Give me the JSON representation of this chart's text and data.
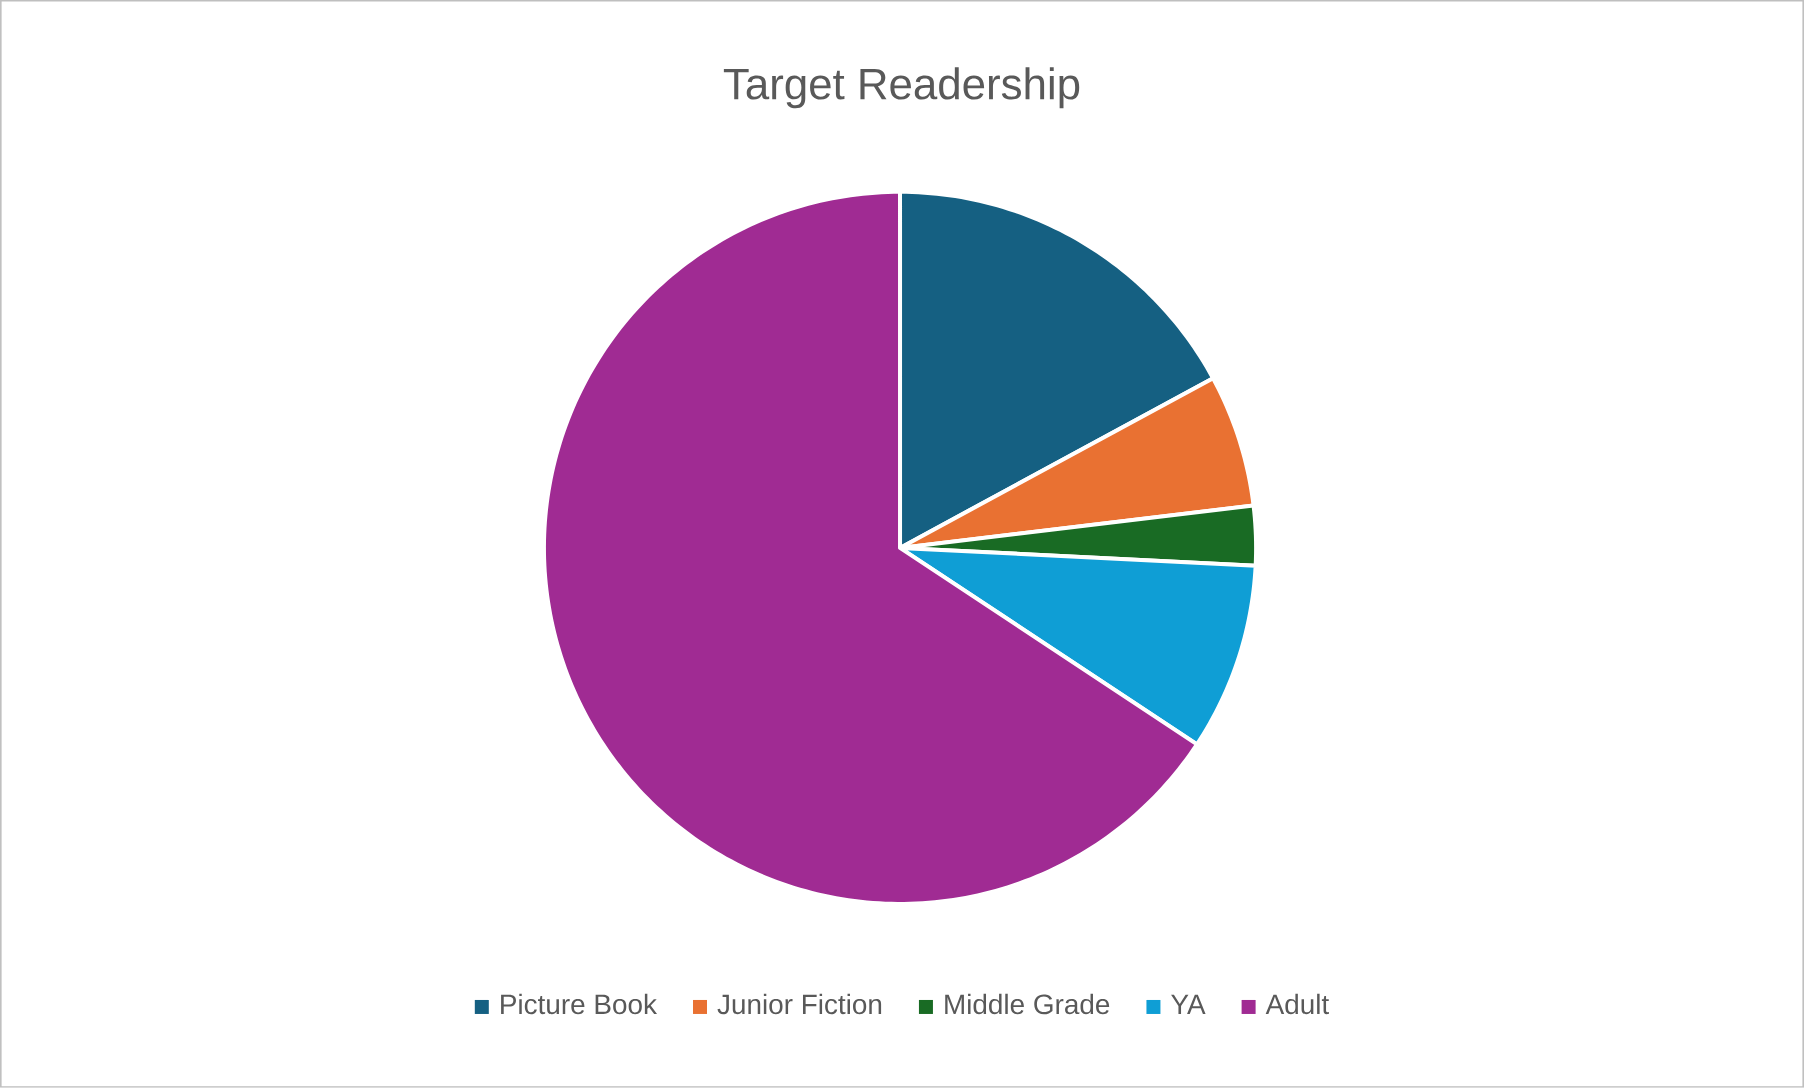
{
  "chart_data": {
    "type": "pie",
    "title": "Target Readership",
    "categories": [
      "Picture Book",
      "Junior Fiction",
      "Middle Grade",
      "YA",
      "Adult"
    ],
    "values": [
      17.1,
      6.0,
      2.7,
      8.5,
      65.7
    ],
    "colors": [
      "#156082",
      "#e97132",
      "#196b24",
      "#0f9ed5",
      "#a02b93"
    ],
    "legend": "bottom"
  }
}
